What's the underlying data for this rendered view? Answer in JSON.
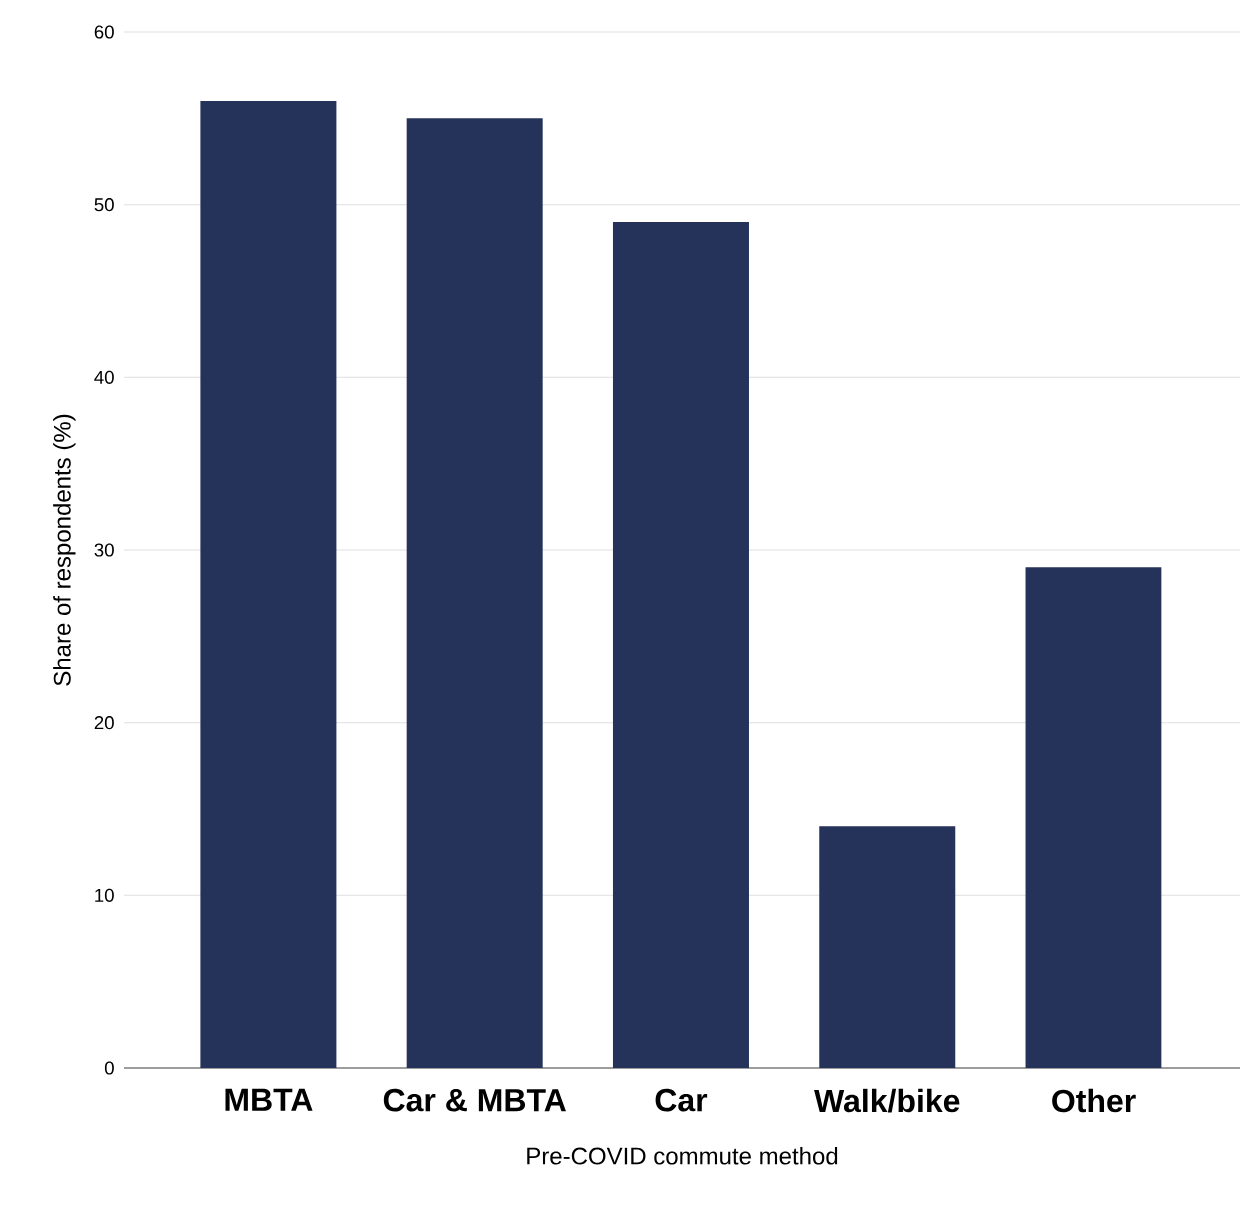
{
  "chart_data": {
    "type": "bar",
    "xlabel": "Pre-COVID commute method",
    "ylabel": "Share of respondents (%)",
    "categories": [
      "MBTA",
      "Car & MBTA",
      "Car",
      "Walk/bike",
      "Other"
    ],
    "values": [
      56,
      55,
      49,
      14,
      29
    ],
    "color": "#253259",
    "ylim": [
      0,
      60
    ],
    "yticks": [
      0,
      10,
      20,
      30,
      40,
      50,
      60
    ],
    "grid": "y"
  }
}
